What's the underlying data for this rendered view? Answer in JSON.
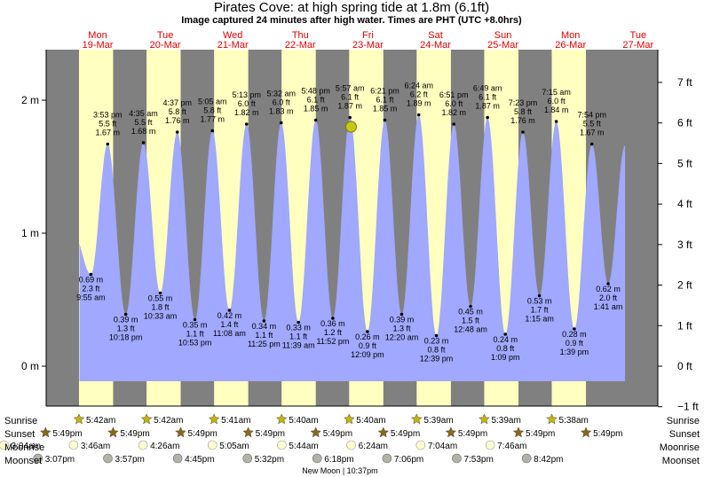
{
  "chart_data": {
    "type": "area",
    "title": "Pirates Cove: at high  spring tide at 1.8m (6.1ft)",
    "subtitle": "Image captured 24 minutes after high water. Times are PHT (UTC +8.0hrs)",
    "timezone": "PHT (UTC +8.0hrs)",
    "ylim_m": [
      -0.3,
      2.3
    ],
    "y_ticks_m": [
      "0 m",
      "1 m",
      "2 m"
    ],
    "y_ticks_ft": [
      "−1 ft",
      "0 ft",
      "1 ft",
      "2 ft",
      "3 ft",
      "4 ft",
      "5 ft",
      "6 ft",
      "7 ft"
    ],
    "current_level_m": 1.8,
    "colors": {
      "night": "#808080",
      "day": "#ffffc0",
      "water": "#a0a8ff",
      "day_label": "#e00000",
      "sun_star": "#c8b400",
      "sunset_star": "#8b6914",
      "moonrise": "#ffffd0",
      "moonset": "#b0b4a8",
      "current_marker": "#c8c814"
    },
    "days": [
      {
        "dow": "Mon",
        "date": "19-Mar"
      },
      {
        "dow": "Tue",
        "date": "20-Mar"
      },
      {
        "dow": "Wed",
        "date": "21-Mar"
      },
      {
        "dow": "Thu",
        "date": "22-Mar"
      },
      {
        "dow": "Fri",
        "date": "23-Mar"
      },
      {
        "dow": "Sat",
        "date": "24-Mar"
      },
      {
        "dow": "Sun",
        "date": "25-Mar"
      },
      {
        "dow": "Mon",
        "date": "26-Mar"
      },
      {
        "dow": "Tue",
        "date": "27-Mar"
      }
    ],
    "day_start_hour": 0,
    "tides": [
      {
        "t": 9.917,
        "type": "low",
        "m": "0.69 m",
        "ft": "2.3 ft",
        "time": "9:55 am",
        "h": 0.69
      },
      {
        "t": 15.883,
        "type": "high",
        "m": "1.67 m",
        "ft": "5.5 ft",
        "time": "3:53 pm",
        "h": 1.67
      },
      {
        "t": 22.3,
        "type": "low",
        "m": "0.39 m",
        "ft": "1.3 ft",
        "time": "10:18 pm",
        "h": 0.39
      },
      {
        "t": 28.583,
        "type": "high",
        "m": "1.68 m",
        "ft": "5.5 ft",
        "time": "4:35 am",
        "h": 1.68
      },
      {
        "t": 34.55,
        "type": "low",
        "m": "0.55 m",
        "ft": "1.8 ft",
        "time": "10:33 am",
        "h": 0.55
      },
      {
        "t": 40.617,
        "type": "high",
        "m": "1.76 m",
        "ft": "5.8 ft",
        "time": "4:37 pm",
        "h": 1.76
      },
      {
        "t": 46.883,
        "type": "low",
        "m": "0.35 m",
        "ft": "1.1 ft",
        "time": "10:53 pm",
        "h": 0.35
      },
      {
        "t": 53.083,
        "type": "high",
        "m": "1.77 m",
        "ft": "5.8 ft",
        "time": "5:05 am",
        "h": 1.77
      },
      {
        "t": 59.133,
        "type": "low",
        "m": "0.42 m",
        "ft": "1.4 ft",
        "time": "11:08 am",
        "h": 0.42
      },
      {
        "t": 65.217,
        "type": "high",
        "m": "1.82 m",
        "ft": "6.0 ft",
        "time": "5:13 pm",
        "h": 1.82
      },
      {
        "t": 71.417,
        "type": "low",
        "m": "0.34 m",
        "ft": "1.1 ft",
        "time": "11:25 pm",
        "h": 0.34
      },
      {
        "t": 77.533,
        "type": "high",
        "m": "1.83 m",
        "ft": "6.0 ft",
        "time": "5:32 am",
        "h": 1.83
      },
      {
        "t": 83.65,
        "type": "low",
        "m": "0.33 m",
        "ft": "1.1 ft",
        "time": "11:39 am",
        "h": 0.33
      },
      {
        "t": 89.8,
        "type": "high",
        "m": "1.85 m",
        "ft": "6.1 ft",
        "time": "5:48 pm",
        "h": 1.85
      },
      {
        "t": 95.867,
        "type": "low",
        "m": "0.36 m",
        "ft": "1.2 ft",
        "time": "11:52 pm",
        "h": 0.36
      },
      {
        "t": 101.95,
        "type": "high",
        "m": "1.87 m",
        "ft": "6.1 ft",
        "time": "5:57 am",
        "h": 1.87
      },
      {
        "t": 108.15,
        "type": "low",
        "m": "0.26 m",
        "ft": "0.9 ft",
        "time": "12:09 pm",
        "h": 0.26
      },
      {
        "t": 114.35,
        "type": "high",
        "m": "1.85 m",
        "ft": "6.1 ft",
        "time": "6:21 pm",
        "h": 1.85
      },
      {
        "t": 120.333,
        "type": "low",
        "m": "0.39 m",
        "ft": "1.3 ft",
        "time": "12:20 am",
        "h": 0.39
      },
      {
        "t": 126.4,
        "type": "high",
        "m": "1.89 m",
        "ft": "6.2 ft",
        "time": "6:24 am",
        "h": 1.89
      },
      {
        "t": 132.65,
        "type": "low",
        "m": "0.23 m",
        "ft": "0.8 ft",
        "time": "12:39 pm",
        "h": 0.23
      },
      {
        "t": 138.85,
        "type": "high",
        "m": "1.82 m",
        "ft": "6.0 ft",
        "time": "6:51 pm",
        "h": 1.82
      },
      {
        "t": 144.8,
        "type": "low",
        "m": "0.45 m",
        "ft": "1.5 ft",
        "time": "12:48 am",
        "h": 0.45
      },
      {
        "t": 150.817,
        "type": "high",
        "m": "1.87 m",
        "ft": "6.1 ft",
        "time": "6:49 am",
        "h": 1.87
      },
      {
        "t": 157.15,
        "type": "low",
        "m": "0.24 m",
        "ft": "0.8 ft",
        "time": "1:09 pm",
        "h": 0.24
      },
      {
        "t": 163.383,
        "type": "high",
        "m": "1.76 m",
        "ft": "5.8 ft",
        "time": "7:23 pm",
        "h": 1.76
      },
      {
        "t": 169.25,
        "type": "low",
        "m": "0.53 m",
        "ft": "1.7 ft",
        "time": "1:15 am",
        "h": 0.53
      },
      {
        "t": 175.25,
        "type": "high",
        "m": "1.84 m",
        "ft": "6.0 ft",
        "time": "7:15 am",
        "h": 1.84
      },
      {
        "t": 181.65,
        "type": "low",
        "m": "0.28 m",
        "ft": "0.9 ft",
        "time": "1:39 pm",
        "h": 0.28
      },
      {
        "t": 187.9,
        "type": "high",
        "m": "1.67 m",
        "ft": "5.5 ft",
        "time": "7:54 pm",
        "h": 1.67
      },
      {
        "t": 193.683,
        "type": "low",
        "m": "0.62 m",
        "ft": "2.0 ft",
        "time": "1:41 am",
        "h": 0.62
      }
    ],
    "sunrise": [
      {
        "day": 0,
        "time": "5:42am",
        "t": 5.7
      },
      {
        "day": 1,
        "time": "5:42am",
        "t": 29.7
      },
      {
        "day": 2,
        "time": "5:41am",
        "t": 53.683
      },
      {
        "day": 3,
        "time": "5:40am",
        "t": 77.667
      },
      {
        "day": 4,
        "time": "5:40am",
        "t": 101.667
      },
      {
        "day": 5,
        "time": "5:39am",
        "t": 125.65
      },
      {
        "day": 6,
        "time": "5:39am",
        "t": 149.65
      },
      {
        "day": 7,
        "time": "5:38am",
        "t": 173.633
      }
    ],
    "sunset": [
      {
        "day": -1,
        "time": "5:49pm",
        "t": -6.183
      },
      {
        "day": 0,
        "time": "5:49pm",
        "t": 17.817
      },
      {
        "day": 1,
        "time": "5:49pm",
        "t": 41.817
      },
      {
        "day": 2,
        "time": "5:49pm",
        "t": 65.817
      },
      {
        "day": 3,
        "time": "5:49pm",
        "t": 89.817
      },
      {
        "day": 4,
        "time": "5:49pm",
        "t": 113.817
      },
      {
        "day": 5,
        "time": "5:49pm",
        "t": 137.817
      },
      {
        "day": 6,
        "time": "5:49pm",
        "t": 161.817
      },
      {
        "day": 7,
        "time": "5:49pm",
        "t": 185.817
      }
    ],
    "moonrise": [
      {
        "time": "3:04am",
        "t": -20.933
      },
      {
        "time": "3:46am",
        "t": 3.767
      },
      {
        "time": "4:26am",
        "t": 28.433
      },
      {
        "time": "5:05am",
        "t": 53.083
      },
      {
        "time": "5:44am",
        "t": 77.733
      },
      {
        "time": "6:24am",
        "t": 102.4
      },
      {
        "time": "7:04am",
        "t": 127.067
      },
      {
        "time": "7:46am",
        "t": 151.767
      }
    ],
    "moonset": [
      {
        "time": "3:07pm",
        "t": -8.883
      },
      {
        "time": "3:57pm",
        "t": 15.95
      },
      {
        "time": "4:45pm",
        "t": 40.75
      },
      {
        "time": "5:32pm",
        "t": 65.533
      },
      {
        "time": "6:18pm",
        "t": 90.3
      },
      {
        "time": "7:06pm",
        "t": 115.1
      },
      {
        "time": "7:53pm",
        "t": 139.883
      },
      {
        "time": "8:42pm",
        "t": 164.7
      }
    ],
    "rows": {
      "sunrise": "Sunrise",
      "sunset": "Sunset",
      "moonrise": "Moonrise",
      "moonset": "Moonset"
    },
    "footnote": "New Moon | 10:37pm"
  }
}
